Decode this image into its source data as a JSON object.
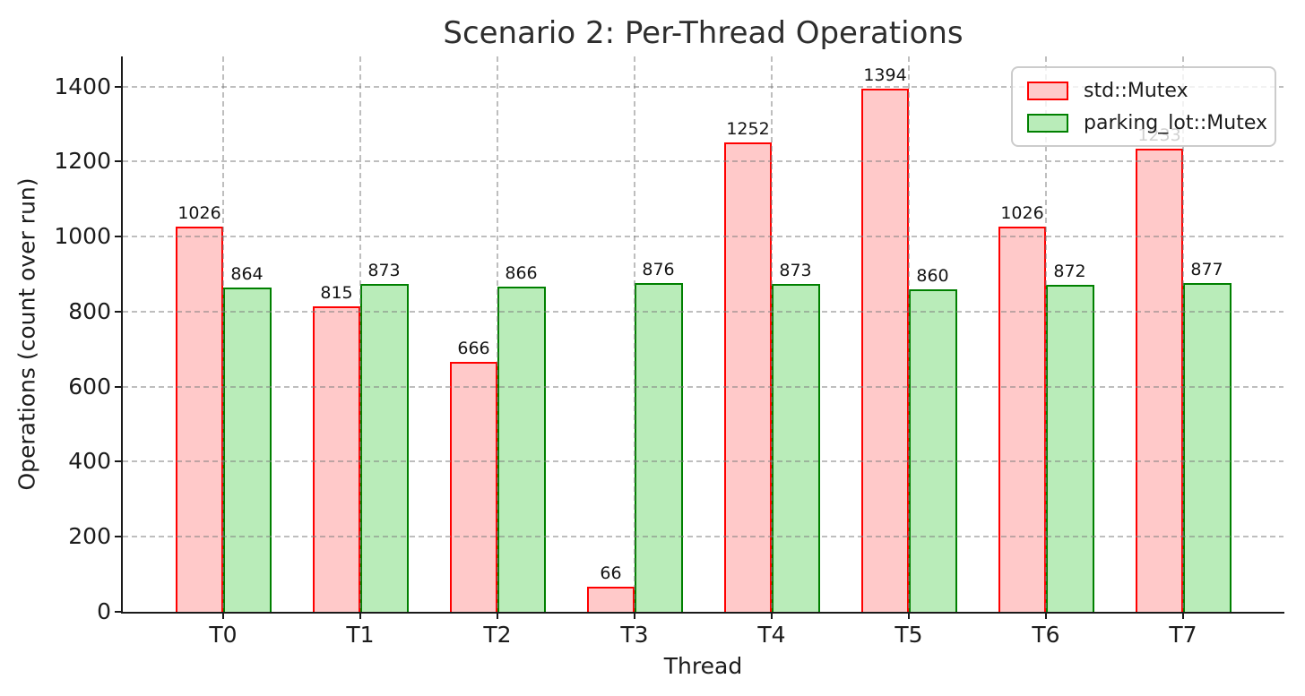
{
  "chart_data": {
    "type": "bar",
    "title": "Scenario 2: Per-Thread Operations",
    "xlabel": "Thread",
    "ylabel": "Operations (count over run)",
    "categories": [
      "T0",
      "T1",
      "T2",
      "T3",
      "T4",
      "T5",
      "T6",
      "T7"
    ],
    "series": [
      {
        "name": "std::Mutex",
        "values": [
          1026,
          815,
          666,
          66,
          1252,
          1394,
          1026,
          1233
        ],
        "edge_color": "#ff0000",
        "fill_color": "#ffc9c9"
      },
      {
        "name": "parking_lot::Mutex",
        "values": [
          864,
          873,
          866,
          876,
          873,
          860,
          872,
          877
        ],
        "edge_color": "#008000",
        "fill_color": "#b9ecb9"
      }
    ],
    "ylim": [
      0,
      1480
    ],
    "yticks": [
      0,
      200,
      400,
      600,
      800,
      1000,
      1200,
      1400
    ],
    "grid": true,
    "grid_style": "dashed",
    "grid_above_bars": true,
    "legend_position": "upper-right",
    "value_labels": true,
    "background_color": "#ffffff",
    "text_color": "#1c1c1c"
  }
}
